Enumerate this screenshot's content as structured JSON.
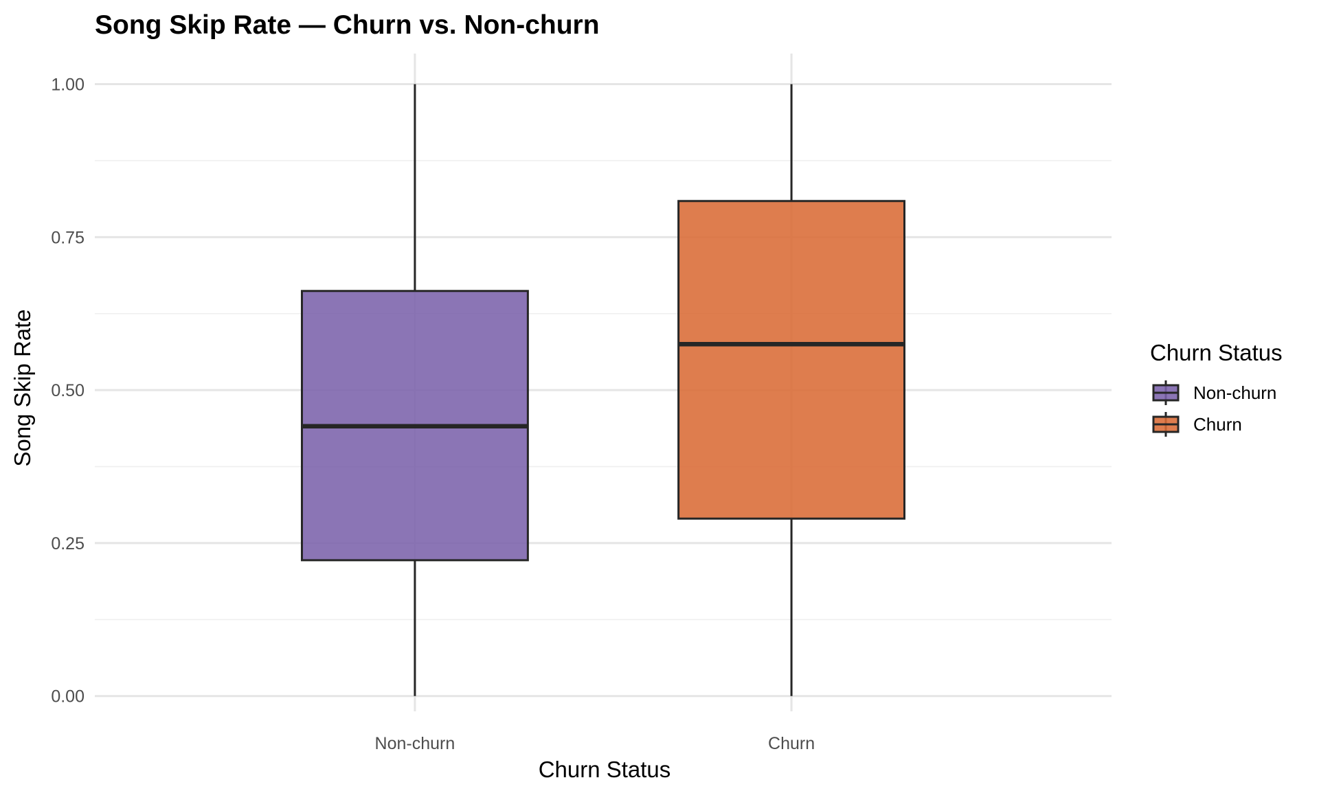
{
  "chart_data": {
    "type": "boxplot",
    "title": "Song Skip Rate — Churn vs. Non-churn",
    "xlabel": "Churn Status",
    "ylabel": "Song Skip Rate",
    "categories": [
      "Non-churn",
      "Churn"
    ],
    "ylim": [
      -0.025,
      1.05
    ],
    "yticks": [
      "0.00",
      "0.25",
      "0.50",
      "0.75",
      "1.00"
    ],
    "ytick_values": [
      0,
      0.25,
      0.5,
      0.75,
      1.0
    ],
    "grid": true,
    "series": [
      {
        "name": "Non-churn",
        "min": 0.0,
        "q1": 0.222,
        "median": 0.441,
        "q3": 0.662,
        "max": 1.0,
        "color": "#7b62ab"
      },
      {
        "name": "Churn",
        "min": 0.0,
        "q1": 0.29,
        "median": 0.575,
        "q3": 0.809,
        "max": 1.0,
        "color": "#d96b35"
      }
    ],
    "legend": {
      "title": "Churn Status",
      "position": "right",
      "items": [
        "Non-churn",
        "Churn"
      ]
    }
  }
}
